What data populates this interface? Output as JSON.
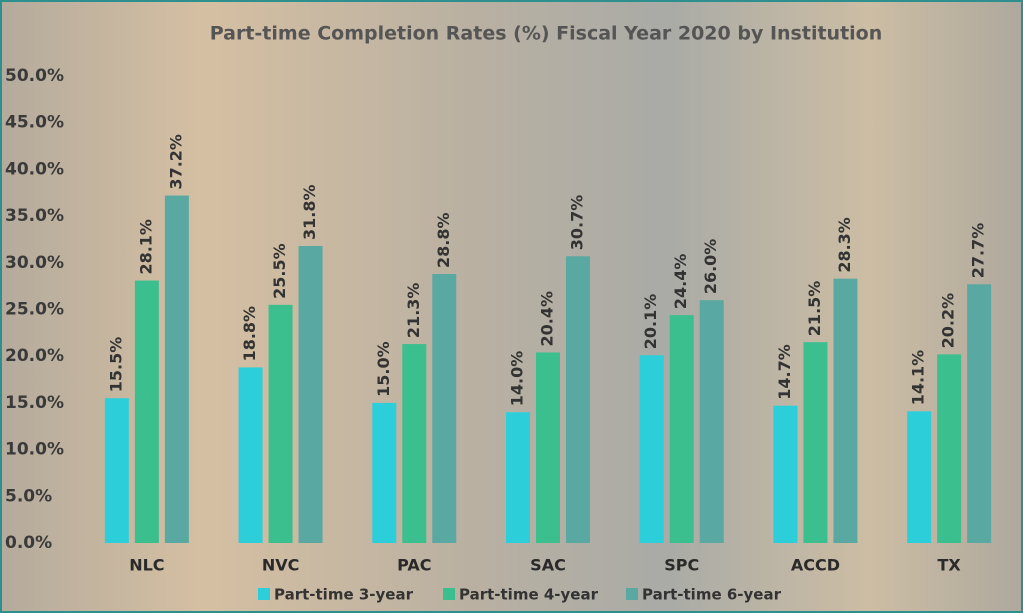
{
  "chart_data": {
    "type": "bar",
    "title": "Part-time Completion Rates (%) Fiscal Year 2020 by Institution",
    "categories": [
      "NLC",
      "NVC",
      "PAC",
      "SAC",
      "SPC",
      "ACCD",
      "TX"
    ],
    "series": [
      {
        "name": "Part-time 3-year",
        "color": "#2ccfd9",
        "values": [
          15.5,
          18.8,
          15.0,
          14.0,
          20.1,
          14.7,
          14.1
        ],
        "value_labels": [
          "15.5%",
          "18.8%",
          "15.0%",
          "14.0%",
          "20.1%",
          "14.7%",
          "14.1%"
        ]
      },
      {
        "name": "Part-time 4-year",
        "color": "#3cbf8f",
        "values": [
          28.1,
          25.5,
          21.3,
          20.4,
          24.4,
          21.5,
          20.2
        ],
        "value_labels": [
          "28.1%",
          "25.5%",
          "21.3%",
          "20.4%",
          "24.4%",
          "21.5%",
          "20.2%"
        ]
      },
      {
        "name": "Part-time 6-year",
        "color": "#5aa8a2",
        "values": [
          37.2,
          31.8,
          28.8,
          30.7,
          26.0,
          28.3,
          27.7
        ],
        "value_labels": [
          "37.2%",
          "31.8%",
          "28.8%",
          "30.7%",
          "26.0%",
          "28.3%",
          "27.7%"
        ]
      }
    ],
    "ylim": [
      0,
      50
    ],
    "yticks": [
      {
        "value": 0,
        "label": "0.0%"
      },
      {
        "value": 5,
        "label": "5.0%"
      },
      {
        "value": 10,
        "label": "10.0%"
      },
      {
        "value": 15,
        "label": "15.0%"
      },
      {
        "value": 20,
        "label": "20.0%"
      },
      {
        "value": 25,
        "label": "25.0%"
      },
      {
        "value": 30,
        "label": "30.0%"
      },
      {
        "value": 35,
        "label": "35.0%"
      },
      {
        "value": 40,
        "label": "40.0%"
      },
      {
        "value": 45,
        "label": "45.0%"
      },
      {
        "value": 50,
        "label": "50.0%"
      }
    ],
    "legend": "bottom"
  }
}
